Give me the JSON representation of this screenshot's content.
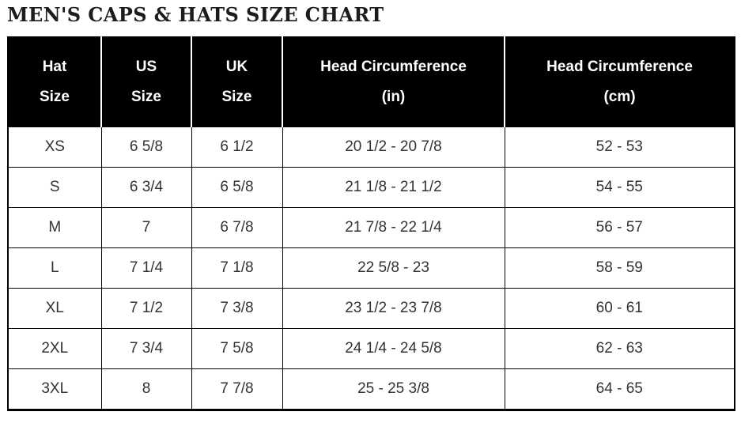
{
  "page_title": "MEN'S CAPS & HATS SIZE CHART",
  "colors": {
    "header_bg": "#000000",
    "header_text": "#ffffff",
    "body_text": "#333333",
    "border": "#000000",
    "page_bg": "#ffffff"
  },
  "table": {
    "headers": [
      {
        "line1": "Hat",
        "line2": "Size"
      },
      {
        "line1": "US",
        "line2": "Size"
      },
      {
        "line1": "UK",
        "line2": "Size"
      },
      {
        "line1": "Head Circumference",
        "line2": "(in)"
      },
      {
        "line1": "Head Circumference",
        "line2": "(cm)"
      }
    ],
    "rows": [
      {
        "hat_size": "XS",
        "us_size": "6 5/8",
        "uk_size": "6 1/2",
        "circumference_in": "20 1/2 - 20 7/8",
        "circumference_cm": "52 - 53"
      },
      {
        "hat_size": "S",
        "us_size": "6 3/4",
        "uk_size": "6 5/8",
        "circumference_in": "21 1/8 - 21 1/2",
        "circumference_cm": "54 - 55"
      },
      {
        "hat_size": "M",
        "us_size": "7",
        "uk_size": "6 7/8",
        "circumference_in": "21 7/8 - 22 1/4",
        "circumference_cm": "56 - 57"
      },
      {
        "hat_size": "L",
        "us_size": "7 1/4",
        "uk_size": "7 1/8",
        "circumference_in": "22 5/8 - 23",
        "circumference_cm": "58 - 59"
      },
      {
        "hat_size": "XL",
        "us_size": "7 1/2",
        "uk_size": "7 3/8",
        "circumference_in": "23 1/2 - 23 7/8",
        "circumference_cm": "60 - 61"
      },
      {
        "hat_size": "2XL",
        "us_size": "7 3/4",
        "uk_size": "7 5/8",
        "circumference_in": "24 1/4 - 24 5/8",
        "circumference_cm": "62 - 63"
      },
      {
        "hat_size": "3XL",
        "us_size": "8",
        "uk_size": "7 7/8",
        "circumference_in": "25 - 25 3/8",
        "circumference_cm": "64 - 65"
      }
    ]
  }
}
